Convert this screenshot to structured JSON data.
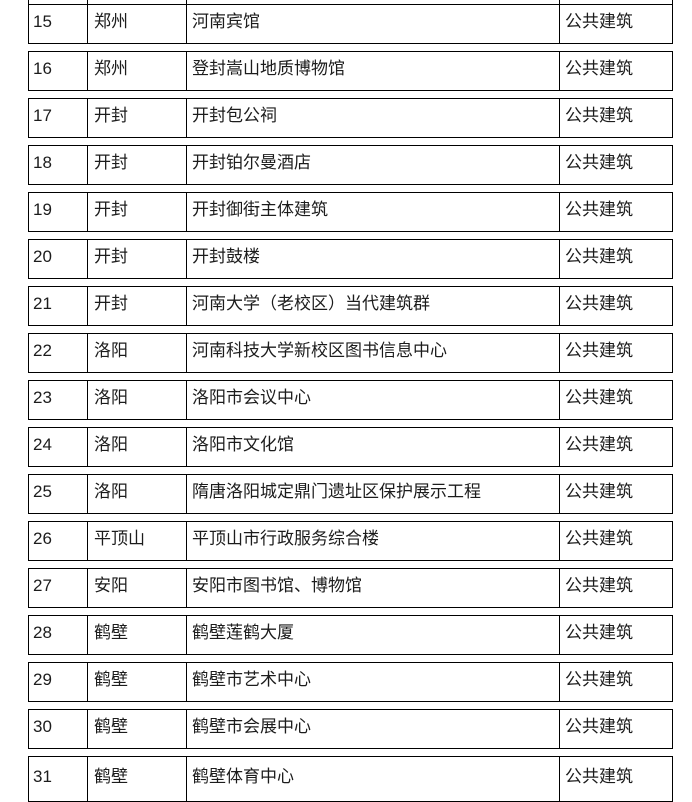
{
  "colors": {
    "background": "#ffffff",
    "border": "#000000",
    "text": "#1c1c1c"
  },
  "table": {
    "category_label": "公共建筑",
    "rows": [
      {
        "no": "15",
        "city": "郑州",
        "name": "河南宾馆",
        "category": "公共建筑"
      },
      {
        "no": "16",
        "city": "郑州",
        "name": "登封嵩山地质博物馆",
        "category": "公共建筑"
      },
      {
        "no": "17",
        "city": "开封",
        "name": "开封包公祠",
        "category": "公共建筑"
      },
      {
        "no": "18",
        "city": "开封",
        "name": "开封铂尔曼酒店",
        "category": "公共建筑"
      },
      {
        "no": "19",
        "city": "开封",
        "name": "开封御街主体建筑",
        "category": "公共建筑"
      },
      {
        "no": "20",
        "city": "开封",
        "name": "开封鼓楼",
        "category": "公共建筑"
      },
      {
        "no": "21",
        "city": "开封",
        "name": "河南大学（老校区）当代建筑群",
        "category": "公共建筑"
      },
      {
        "no": "22",
        "city": "洛阳",
        "name": "河南科技大学新校区图书信息中心",
        "category": "公共建筑"
      },
      {
        "no": "23",
        "city": "洛阳",
        "name": "洛阳市会议中心",
        "category": "公共建筑"
      },
      {
        "no": "24",
        "city": "洛阳",
        "name": "洛阳市文化馆",
        "category": "公共建筑"
      },
      {
        "no": "25",
        "city": "洛阳",
        "name": "隋唐洛阳城定鼎门遗址区保护展示工程",
        "category": "公共建筑"
      },
      {
        "no": "26",
        "city": "平顶山",
        "name": "平顶山市行政服务综合楼",
        "category": "公共建筑"
      },
      {
        "no": "27",
        "city": "安阳",
        "name": "安阳市图书馆、博物馆",
        "category": "公共建筑"
      },
      {
        "no": "28",
        "city": "鹤壁",
        "name": "鹤壁莲鹤大厦",
        "category": "公共建筑"
      },
      {
        "no": "29",
        "city": "鹤壁",
        "name": "鹤壁市艺术中心",
        "category": "公共建筑"
      },
      {
        "no": "30",
        "city": "鹤壁",
        "name": "鹤壁市会展中心",
        "category": "公共建筑"
      },
      {
        "no": "31",
        "city": "鹤壁",
        "name": "鹤壁体育中心",
        "category": "公共建筑"
      }
    ]
  }
}
